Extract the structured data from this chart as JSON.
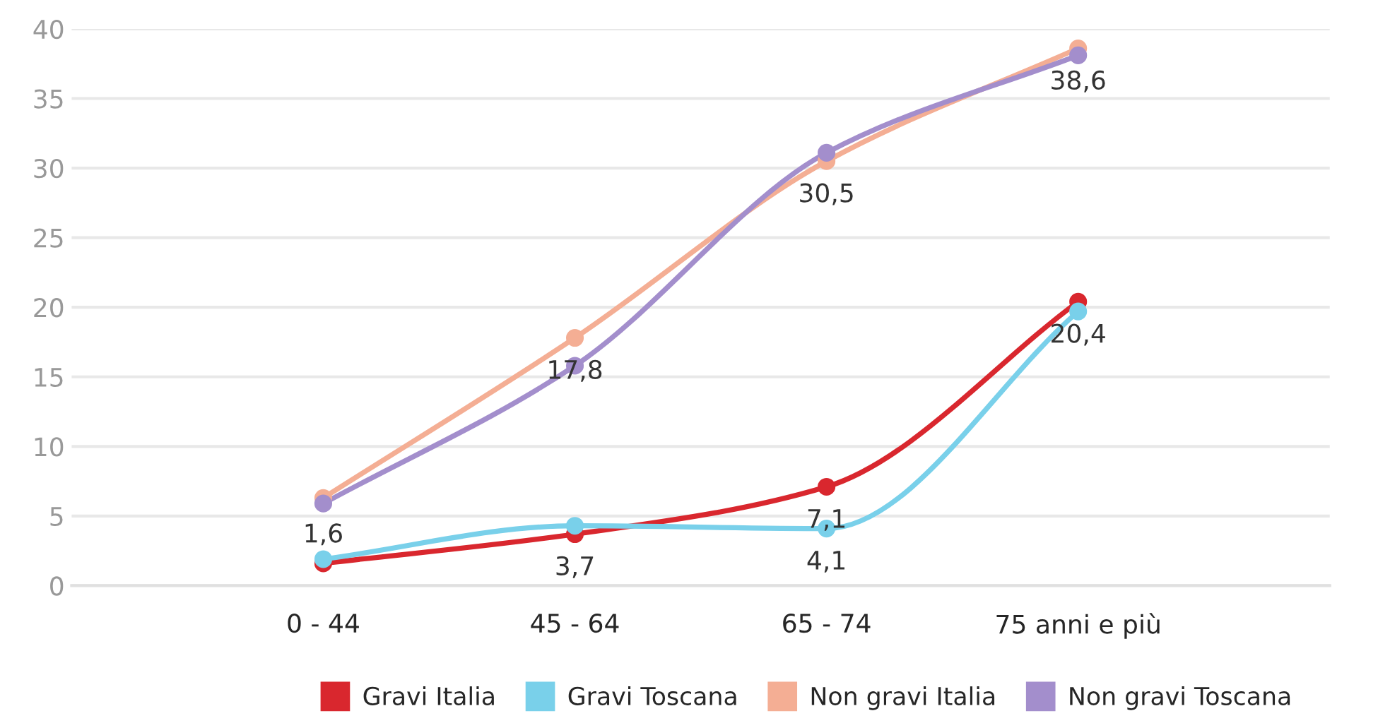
{
  "chart_data": {
    "type": "line",
    "categories": [
      null,
      "0 - 44",
      "45 - 64",
      "65 - 74",
      "75 anni e più",
      null
    ],
    "series": [
      {
        "name": "Gravi Italia",
        "color": "#d9272e",
        "values": [
          null,
          1.6,
          3.7,
          7.1,
          20.4,
          null
        ],
        "value_labels": [
          null,
          "1,6",
          "3,7",
          "7,1",
          "20,4",
          null
        ]
      },
      {
        "name": "Gravi Toscana",
        "color": "#79d0ea",
        "values": [
          null,
          1.9,
          4.3,
          4.1,
          19.7,
          null
        ],
        "value_labels": [
          null,
          null,
          null,
          "4,1",
          null,
          null
        ]
      },
      {
        "name": "Non gravi Italia",
        "color": "#f4ae94",
        "values": [
          null,
          6.3,
          17.8,
          30.5,
          38.6,
          null
        ],
        "value_labels": [
          null,
          null,
          "17,8",
          "30,5",
          "38,6",
          null
        ]
      },
      {
        "name": "Non gravi Toscana",
        "color": "#a38ecc",
        "values": [
          null,
          5.9,
          15.8,
          31.1,
          38.1,
          null
        ]
      }
    ],
    "ylim": [
      0,
      40
    ],
    "yticks": [
      0,
      5,
      10,
      15,
      20,
      25,
      30,
      35,
      40
    ],
    "grid": "y",
    "legend": "bottom",
    "marker": "circle",
    "line_style": "solid"
  }
}
